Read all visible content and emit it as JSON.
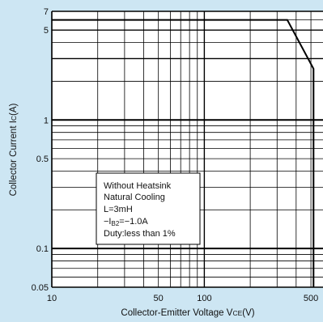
{
  "chart_data": {
    "type": "line",
    "title": "",
    "xlabel": "Collector-Emitter Voltage V",
    "xlabel_sub": "CE",
    "xlabel_unit": "(V)",
    "ylabel": "Collector Current I",
    "ylabel_sub": "C",
    "ylabel_unit": "(A)",
    "x_scale": "log",
    "y_scale": "log",
    "xlim": [
      10,
      600
    ],
    "ylim": [
      0.05,
      7
    ],
    "x_ticks": [
      {
        "value": 10,
        "label": "10"
      },
      {
        "value": 50,
        "label": "50"
      },
      {
        "value": 100,
        "label": "100"
      },
      {
        "value": 500,
        "label": "500"
      }
    ],
    "y_ticks": [
      {
        "value": 7,
        "label": "7"
      },
      {
        "value": 5,
        "label": "5"
      },
      {
        "value": 1,
        "label": "1"
      },
      {
        "value": 0.5,
        "label": "0.5"
      },
      {
        "value": 0.1,
        "label": "0.1"
      },
      {
        "value": 0.05,
        "label": "0.05"
      }
    ],
    "grid": true,
    "series": [
      {
        "x": [
          10,
          350,
          520,
          520
        ],
        "y": [
          6,
          6,
          2.5,
          0.05
        ]
      }
    ],
    "annotation": {
      "lines": [
        "Without Heatsink",
        "Natural Cooling",
        "L=3mH",
        "−I<sub>B2</sub>=−1.0A",
        "Duty:less than 1%"
      ]
    }
  },
  "colors": {
    "background": "#cde6f3",
    "plot_background": "#ffffff",
    "line": "#000000"
  }
}
